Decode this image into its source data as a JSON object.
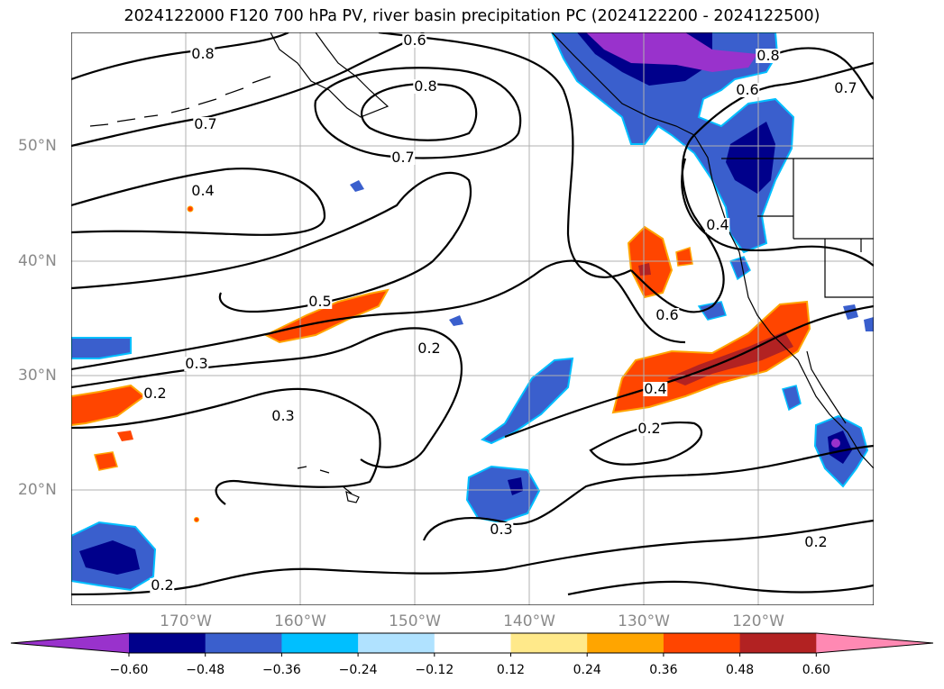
{
  "title": "2024122000 F120 700 hPa PV, river basin precipitation PC (2024122200 - 2024122500)",
  "lat_labels": [
    "50°N",
    "40°N",
    "30°N",
    "20°N"
  ],
  "lon_labels": [
    "170°W",
    "160°W",
    "150°W",
    "140°W",
    "130°W",
    "120°W"
  ],
  "contour_labels": [
    "0.6",
    "0.8",
    "0.8",
    "0.7",
    "0.7",
    "0.8",
    "0.6",
    "0.7",
    "0.4",
    "0.4",
    "0.5",
    "0.6",
    "0.3",
    "0.2",
    "0.2",
    "0.3",
    "0.4",
    "0.2",
    "0.3",
    "0.2",
    "0.2"
  ],
  "colorbar": {
    "ticks": [
      "−0.60",
      "−0.48",
      "−0.36",
      "−0.24",
      "−0.12",
      "0.12",
      "0.24",
      "0.36",
      "0.48",
      "0.60"
    ],
    "colors": [
      "#9932cc",
      "#00008b",
      "#3a5fcd",
      "#00bfff",
      "#b0e2ff",
      "#ffffff",
      "#ffe98a",
      "#ffa500",
      "#ff4500",
      "#b22222",
      "#ff89b3"
    ]
  }
}
